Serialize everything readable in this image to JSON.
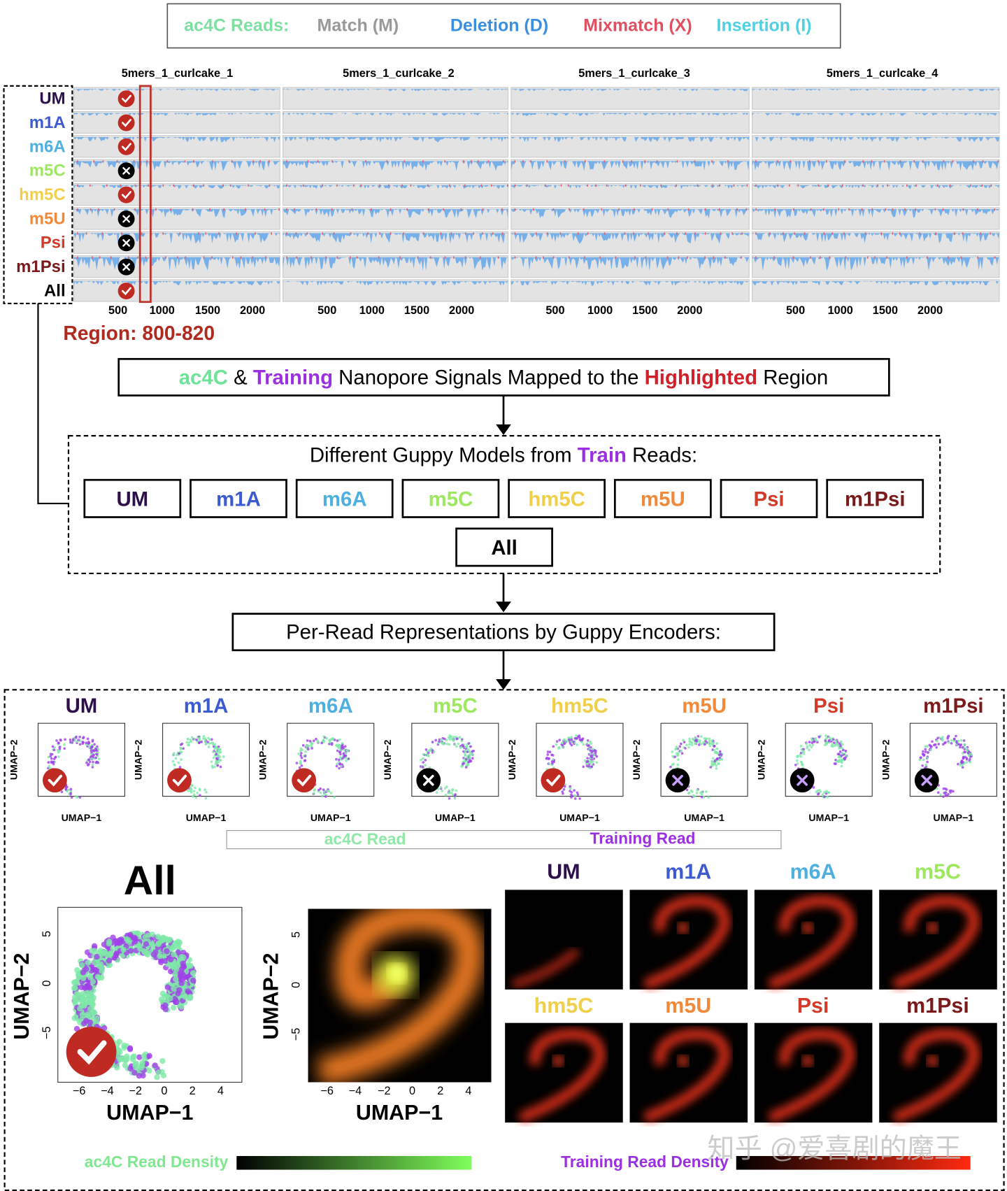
{
  "legend": {
    "label": "ac4C Reads:",
    "items": [
      "Match (M)",
      "Deletion (D)",
      "Mixmatch (X)",
      "Insertion (I)"
    ]
  },
  "tracks": {
    "columns": [
      "5mers_1_curlcake_1",
      "5mers_1_curlcake_2",
      "5mers_1_curlcake_3",
      "5mers_1_curlcake_4"
    ],
    "rows": [
      {
        "label": "UM",
        "status": "check",
        "color": "#2d0f4a"
      },
      {
        "label": "m1A",
        "status": "check",
        "color": "#3d5bd1"
      },
      {
        "label": "m6A",
        "status": "check",
        "color": "#4fb0e0"
      },
      {
        "label": "m5C",
        "status": "cross",
        "color": "#9ee860"
      },
      {
        "label": "hm5C",
        "status": "check",
        "color": "#f0cf4a"
      },
      {
        "label": "m5U",
        "status": "cross",
        "color": "#f08a3a"
      },
      {
        "label": "Psi",
        "status": "cross",
        "color": "#d23a2a"
      },
      {
        "label": "m1Psi",
        "status": "cross",
        "color": "#7a1a1a"
      },
      {
        "label": "All",
        "status": "check",
        "color": "#000000"
      }
    ],
    "x_ticks": [
      "500",
      "1000",
      "1500",
      "2000"
    ],
    "region": "Region: 800-820"
  },
  "signals_box": {
    "parts": [
      "ac4C",
      " & ",
      "Training",
      " Nanopore Signals Mapped to the ",
      "Highlighted",
      " Region"
    ]
  },
  "models_box": {
    "title_parts": [
      "Different Guppy Models from ",
      "Train",
      " Reads:"
    ]
  },
  "encoders_box": {
    "title": "Per-Read Representations by Guppy Encoders:"
  },
  "umap_panels": {
    "x_label": "UMAP−1",
    "y_label": "UMAP−2",
    "legend": [
      "ac4C Read",
      "Training Read"
    ]
  },
  "all_panel": {
    "title": "All",
    "x_label": "UMAP−1",
    "y_label": "UMAP−2",
    "x_ticks": [
      "−6",
      "−4",
      "−2",
      "0",
      "2",
      "4"
    ],
    "y_ticks": [
      "5",
      "0",
      "−5"
    ]
  },
  "density_panel": {
    "x_label": "UMAP−1",
    "y_label": "UMAP−2",
    "x_ticks": [
      "−6",
      "−4",
      "−2",
      "0",
      "2",
      "4"
    ],
    "y_ticks": [
      "5",
      "0",
      "−5"
    ]
  },
  "colorbars": [
    "ac4C Read Density",
    "Training Read Density"
  ],
  "watermark": "知乎 @爱喜剧的魔王"
}
